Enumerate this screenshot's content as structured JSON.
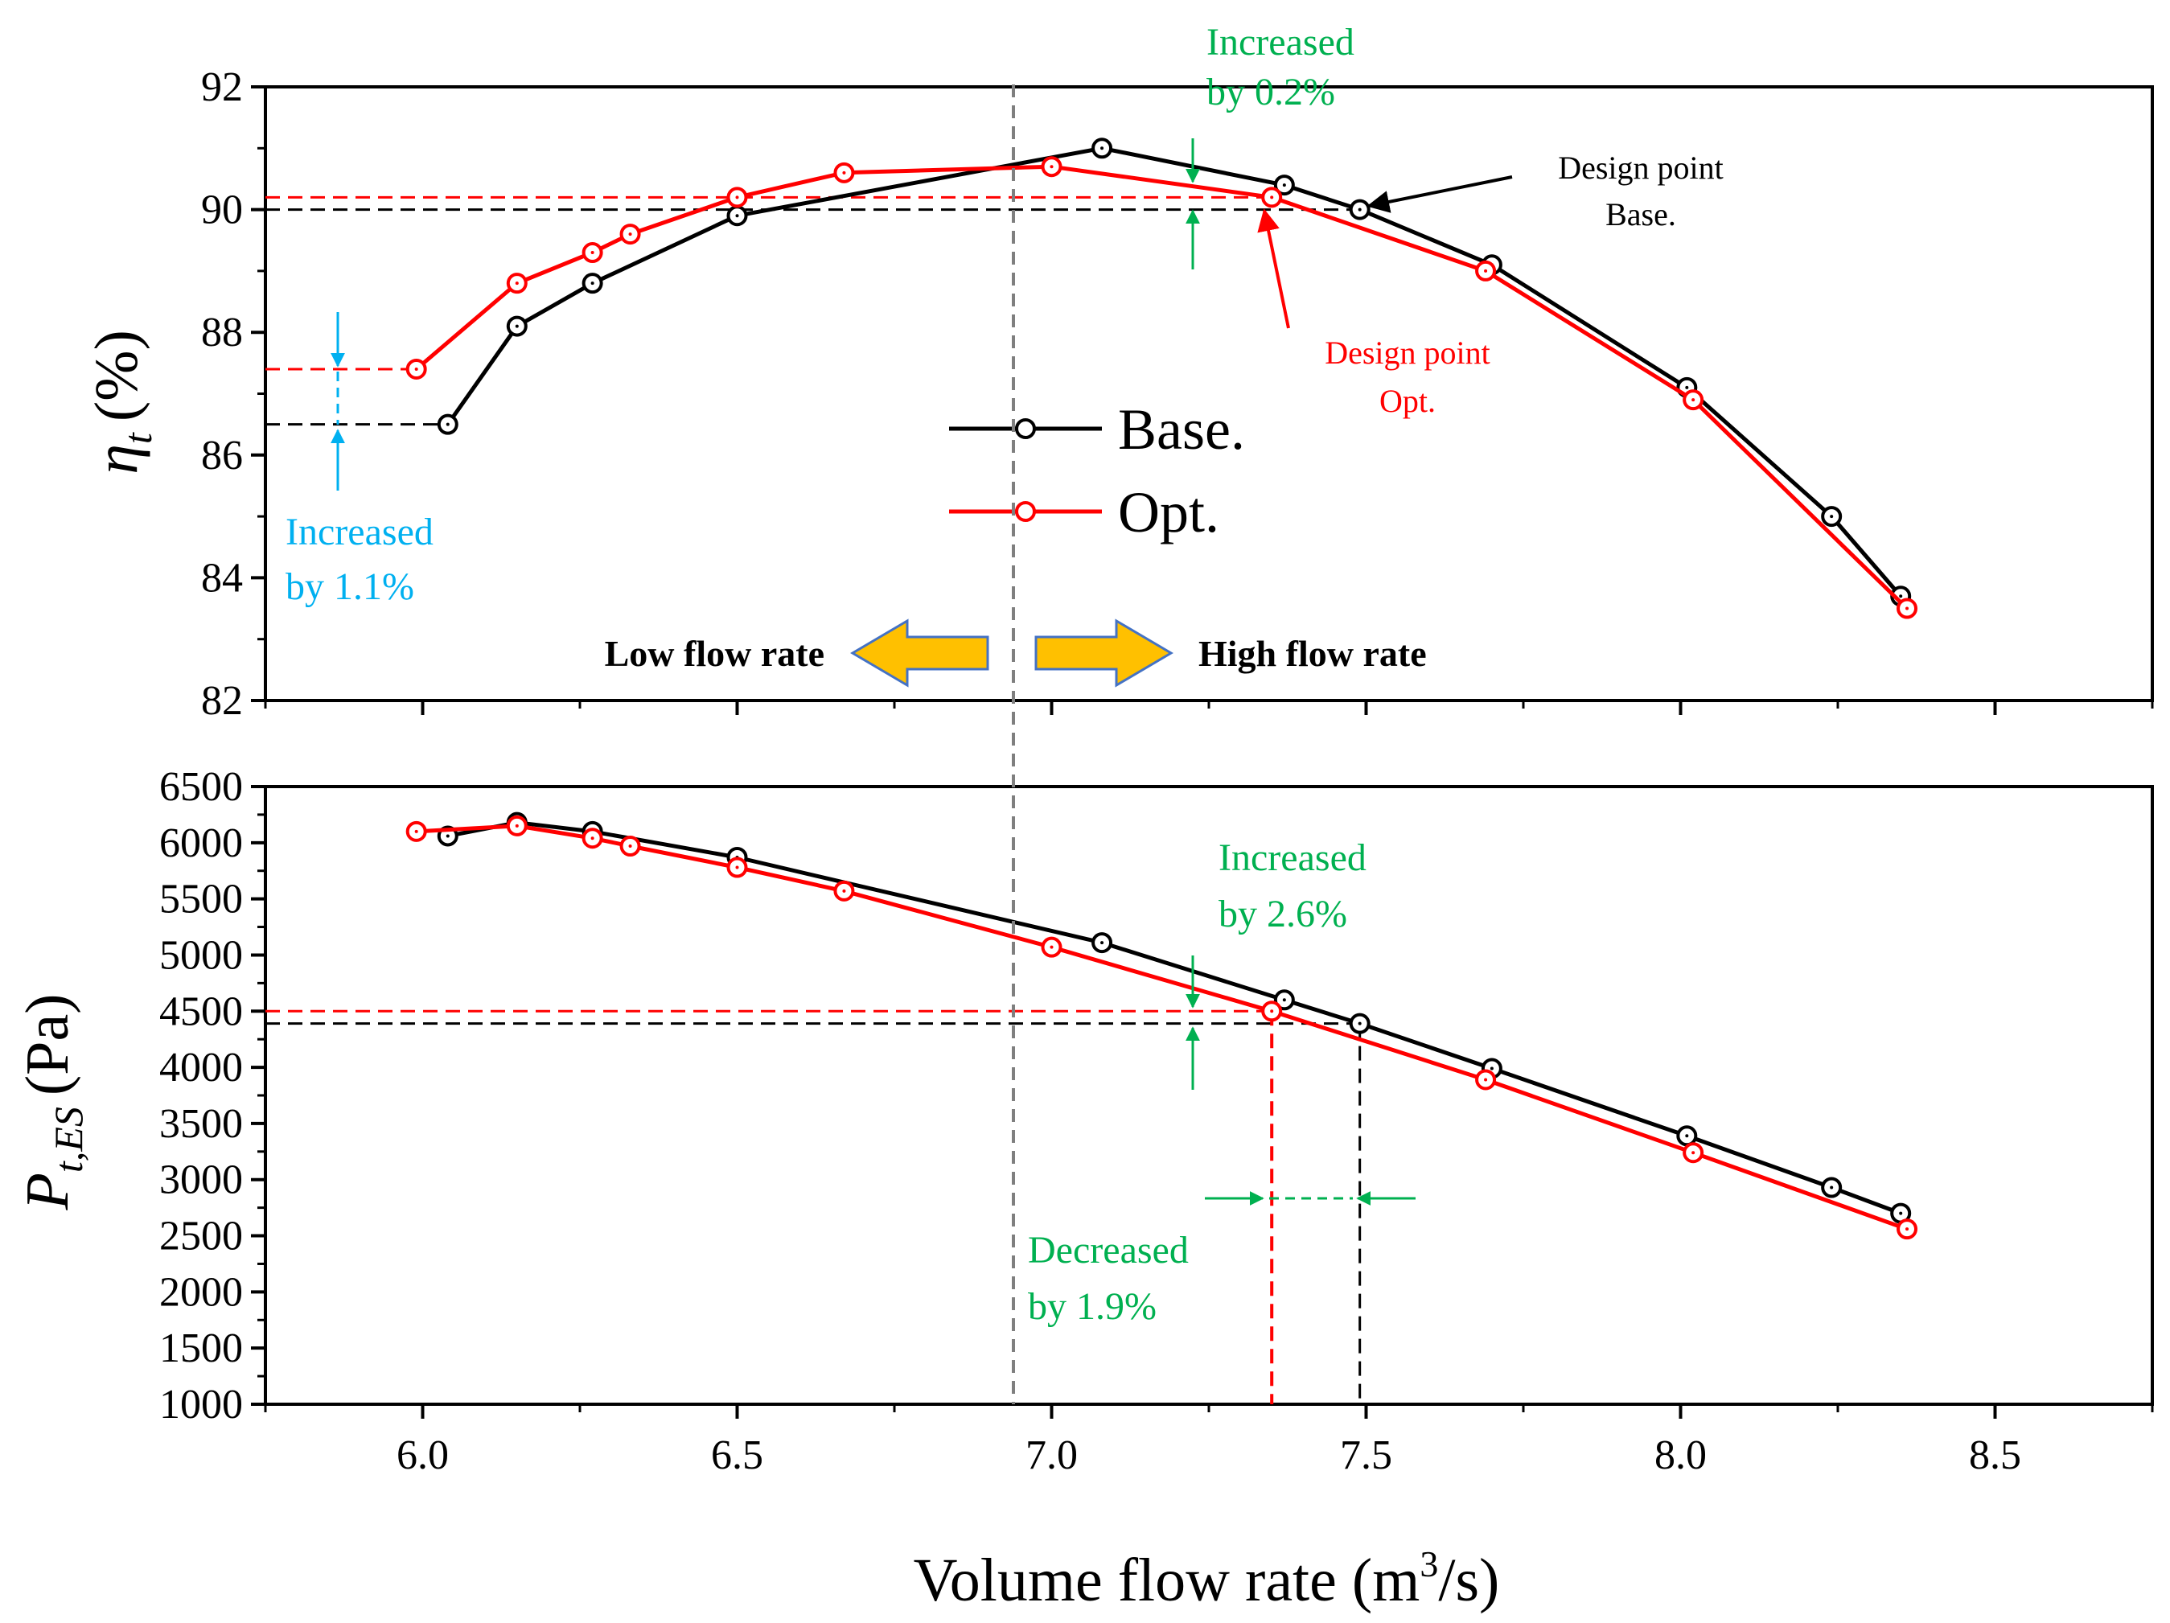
{
  "chart_data": [
    {
      "type": "line",
      "panel": "top",
      "ylabel_symbol": "η",
      "ylabel_subscript": "t",
      "ylabel_unit": "(%)",
      "xlim": [
        5.75,
        8.75
      ],
      "ylim": [
        82,
        92
      ],
      "yticks": [
        "82",
        "84",
        "86",
        "88",
        "90",
        "92"
      ],
      "series": [
        {
          "name": "Base.",
          "color": "#000000",
          "x": [
            6.04,
            6.15,
            6.27,
            6.5,
            7.08,
            7.37,
            7.49,
            7.7,
            8.01,
            8.24,
            8.35
          ],
          "y": [
            86.5,
            88.1,
            88.8,
            89.9,
            91.0,
            90.4,
            90.0,
            89.1,
            87.1,
            85.0,
            83.7
          ]
        },
        {
          "name": "Opt.",
          "color": "#ff0000",
          "x": [
            5.99,
            6.15,
            6.27,
            6.33,
            6.5,
            6.67,
            7.0,
            7.35,
            7.69,
            8.02,
            8.36
          ],
          "y": [
            87.4,
            88.8,
            89.3,
            89.6,
            90.2,
            90.6,
            90.7,
            90.2,
            89.0,
            86.9,
            83.5
          ]
        }
      ],
      "reference_lines": {
        "base_h": 90.0,
        "opt_h": 90.2,
        "low_base_h": 86.5,
        "low_opt_h": 87.4
      },
      "annotations": {
        "increased_0_2_line1": "Increased",
        "increased_0_2_line2": "by 0.2%",
        "increased_1_1_line1": "Increased",
        "increased_1_1_line2": "by 1.1%",
        "design_base_line1": "Design point",
        "design_base_line2": "Base.",
        "design_opt_line1": "Design point",
        "design_opt_line2": "Opt.",
        "low_flow": "Low flow rate",
        "high_flow": "High flow rate"
      },
      "legend": [
        "Base.",
        "Opt."
      ]
    },
    {
      "type": "line",
      "panel": "bottom",
      "ylabel_symbol": "P",
      "ylabel_subscript": "t,ES",
      "ylabel_unit": "(Pa)",
      "xlabel_main": "Volume flow rate (m",
      "xlabel_sup": "3",
      "xlabel_end": "/s)",
      "xlim": [
        5.75,
        8.75
      ],
      "ylim": [
        1000,
        6500
      ],
      "yticks": [
        "1000",
        "1500",
        "2000",
        "2500",
        "3000",
        "3500",
        "4000",
        "4500",
        "5000",
        "5500",
        "6000",
        "6500"
      ],
      "xticks": [
        "6.0",
        "6.5",
        "7.0",
        "7.5",
        "8.0",
        "8.5"
      ],
      "series": [
        {
          "name": "Base.",
          "color": "#000000",
          "x": [
            6.04,
            6.15,
            6.27,
            6.5,
            7.08,
            7.37,
            7.49,
            7.7,
            8.01,
            8.24,
            8.35
          ],
          "y": [
            6060,
            6180,
            6100,
            5870,
            5110,
            4600,
            4390,
            3990,
            3390,
            2930,
            2700
          ]
        },
        {
          "name": "Opt.",
          "color": "#ff0000",
          "x": [
            5.99,
            6.15,
            6.27,
            6.33,
            6.5,
            6.67,
            7.0,
            7.35,
            7.69,
            8.02,
            8.36
          ],
          "y": [
            6100,
            6150,
            6040,
            5970,
            5780,
            5570,
            5070,
            4500,
            3890,
            3240,
            2560
          ]
        }
      ],
      "reference_lines": {
        "base_h": 4390,
        "opt_h": 4500,
        "base_v": 7.49,
        "opt_v": 7.35
      },
      "annotations": {
        "increased_2_6_line1": "Increased",
        "increased_2_6_line2": "by 2.6%",
        "decreased_1_9_line1": "Decreased",
        "decreased_1_9_line2": "by 1.9%"
      }
    }
  ],
  "colors": {
    "base": "#000000",
    "opt": "#ff0000",
    "green": "#00b050",
    "blue": "#00b0f0",
    "arrow_fill": "#ffc000",
    "arrow_stroke": "#4472c4",
    "divider": "#7f7f7f"
  }
}
